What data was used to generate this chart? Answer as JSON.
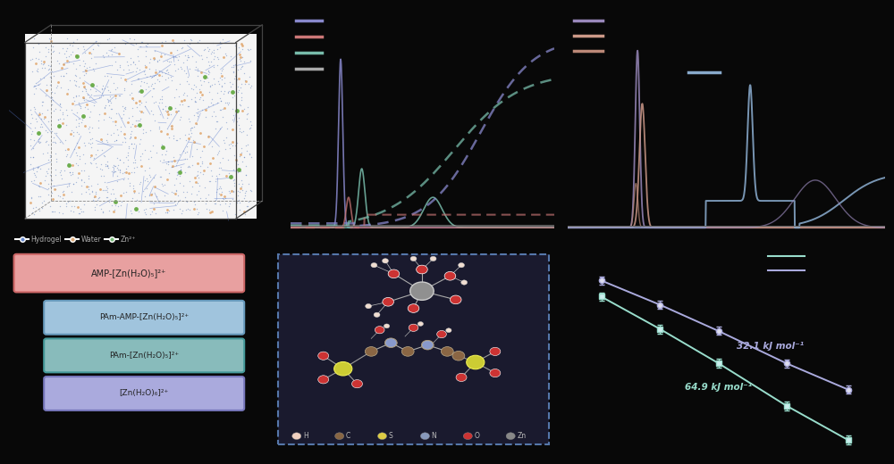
{
  "bg_color": "#080808",
  "panel1_legend_colors": [
    "#8888cc",
    "#cc7777",
    "#77bbaa",
    "#aaaaaa"
  ],
  "panel2_legend_colors": [
    "#9988bb",
    "#cc9988",
    "#bb8877"
  ],
  "panel2_extra_legend_color": "#88aacc",
  "arrhenius_colors": [
    "#aaaadd",
    "#99ddcc"
  ],
  "arrhenius_ea1": "32.1 kJ mol⁻¹",
  "arrhenius_ea2": "64.9 kJ mol⁻¹",
  "box_labels": [
    "AMP-[Zn(H₂O)₅]²⁺",
    "PAm-AMP-[Zn(H₂O)₅]²⁺",
    "PAm-[Zn(H₂O)₅]²⁺",
    "[Zn(H₂O)₆]²⁺"
  ],
  "box_colors": [
    "#e8a0a0",
    "#a0c4dd",
    "#88bbbb",
    "#aaaadd"
  ],
  "box_edge_colors": [
    "#cc6666",
    "#6699bb",
    "#449999",
    "#7777bb"
  ],
  "hydrogel_label": "Hydrogel",
  "water_label": "Water",
  "zn_label": "Zn²⁺",
  "hydrogel_color": "#6688cc",
  "water_color": "#ddaa77",
  "zn_color": "#77bb77",
  "atom_labels": [
    "H",
    "C",
    "S",
    "N",
    "O",
    "Zn"
  ],
  "atom_colors": [
    "#f0d0c0",
    "#886644",
    "#ddcc44",
    "#8899bb",
    "#cc3333",
    "#888888"
  ],
  "md_bg": "#f5f5f5",
  "mol_bg": "#1a1a2e",
  "mol_border": "#5577aa"
}
